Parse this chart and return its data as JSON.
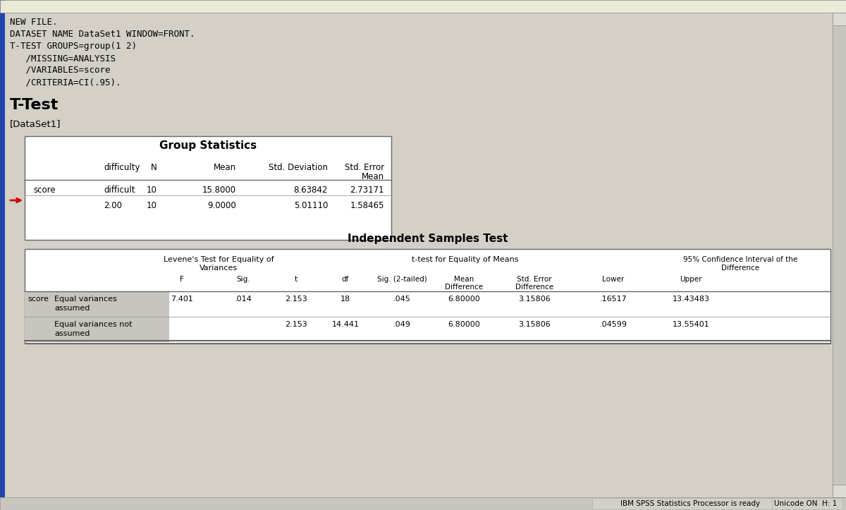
{
  "bg_color": "#d4d0c8",
  "syntax_lines": [
    "NEW FILE.",
    "DATASET NAME DataSet1 WINDOW=FRONT.",
    "T-TEST GROUPS=group(1 2)",
    "   /MISSING=ANALYSIS",
    "   /VARIABLES=score",
    "   /CRITERIA=CI(.95)."
  ],
  "ttest_title": "T-Test",
  "dataset_label": "[DataSet1]",
  "group_stats_title": "Group Statistics",
  "gs_headers": [
    "difficulty",
    "N",
    "Mean",
    "Std. Deviation",
    "Std. Error\nMean"
  ],
  "gs_row1": [
    "score",
    "difficult",
    "10",
    "15.8000",
    "8.63842",
    "2.73171"
  ],
  "gs_row2": [
    "",
    "2.00",
    "10",
    "9.0000",
    "5.01110",
    "1.58465"
  ],
  "indep_title": "Independent Samples Test",
  "levene_header": "Levene's Test for Equality of\nVariances",
  "ttest_eq_header": "t-test for Equality of Means",
  "ci_header": "95% Confidence Interval of the\nDifference",
  "it_col_headers": [
    "F",
    "Sig.",
    "t",
    "df",
    "Sig. (2-tailed)",
    "Mean\nDifference",
    "Std. Error\nDifference",
    "Lower",
    "Upper"
  ],
  "it_row1_label1": "score",
  "it_row1_label2": "Equal variances\nassumed",
  "it_row1_vals": [
    "7.401",
    ".014",
    "2.153",
    "18",
    ".045",
    "6.80000",
    "3.15806",
    ".16517",
    "13.43483"
  ],
  "it_row2_label2": "Equal variances not\nassumed",
  "it_row2_vals": [
    "",
    "",
    "2.153",
    "14.441",
    ".049",
    "6.80000",
    "3.15806",
    ".04599",
    "13.55401"
  ],
  "status_left": "IBM SPSS Statistics Processor is ready",
  "status_right": "Unicode ON  H: 1",
  "left_border_color": "#2244aa",
  "table_border_color": "#666666",
  "table_bg": "#ffffff",
  "row_shade": "#c8c5be",
  "separator_color": "#999999",
  "arrow_color": "#cc0000"
}
